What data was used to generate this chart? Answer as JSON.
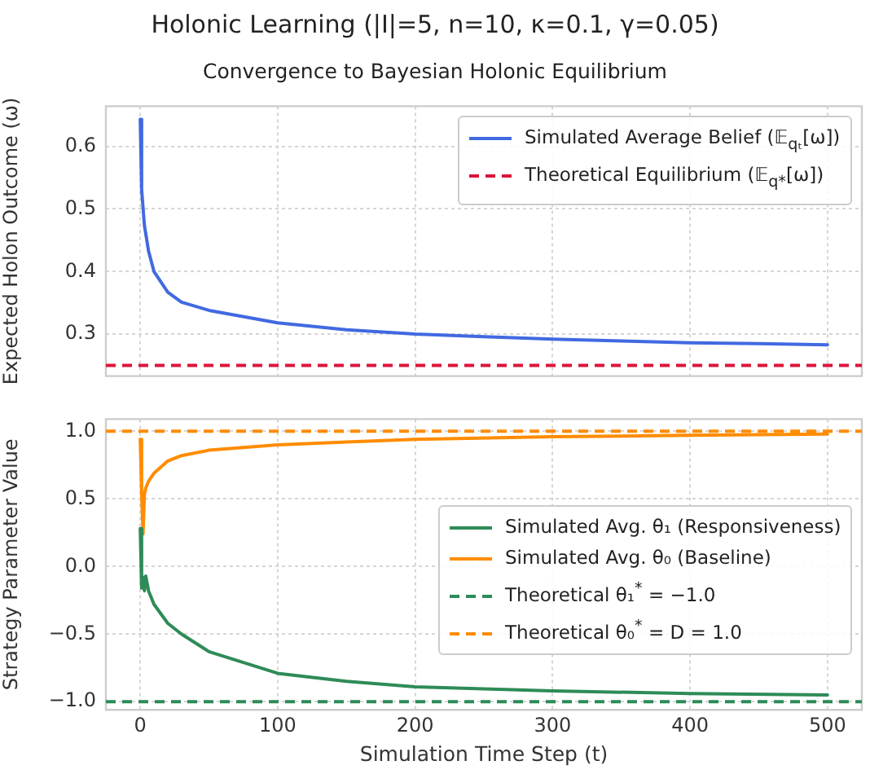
{
  "chart_data": [
    {
      "type": "line",
      "title": "Holonic Learning (|I|=5, n=10, κ=0.1, γ=0.05)",
      "subtitle": "Convergence to Bayesian Holonic Equilibrium",
      "ylabel": "Expected Holon Outcome (ω)",
      "x": [
        0,
        1,
        3,
        6,
        10,
        20,
        30,
        50,
        100,
        150,
        200,
        250,
        300,
        350,
        400,
        450,
        500
      ],
      "series": [
        {
          "name": "Simulated Average Belief (𝔼$_{qₜ}$[ω])",
          "color": "#4169e1",
          "values": [
            0.643,
            0.531,
            0.474,
            0.433,
            0.4,
            0.367,
            0.351,
            0.338,
            0.318,
            0.307,
            0.3,
            0.296,
            0.292,
            0.289,
            0.286,
            0.285,
            0.283
          ]
        }
      ],
      "ref_lines": [
        {
          "axis": "y",
          "value": 0.25,
          "label": "Theoretical Equilibrium (𝔼$_{q*}$[ω])",
          "color": "#dc143c",
          "line_style": "dashed"
        }
      ],
      "xlim": [
        -25,
        525
      ],
      "xticks": [
        0,
        100,
        200,
        300,
        400,
        500
      ],
      "ylim": [
        0.233,
        0.664
      ],
      "yticks": [
        0.3,
        0.4,
        0.5,
        0.6
      ],
      "tick_labels": "y",
      "grid": true,
      "legend": "top right",
      "line_style": "solid",
      "marker": "none"
    },
    {
      "type": "line",
      "xlabel": "Simulation Time Step (t)",
      "ylabel": "Strategy Parameter Value",
      "x": [
        0,
        1,
        2,
        3,
        4,
        6,
        10,
        20,
        30,
        50,
        100,
        150,
        200,
        300,
        400,
        500
      ],
      "series": [
        {
          "name": "Simulated Avg. θ₁ (Responsiveness)",
          "color": "#2e8b57",
          "values": [
            0.28,
            -0.16,
            -0.08,
            -0.18,
            -0.07,
            -0.18,
            -0.28,
            -0.42,
            -0.5,
            -0.63,
            -0.79,
            -0.85,
            -0.89,
            -0.92,
            -0.94,
            -0.95
          ]
        },
        {
          "name": "Simulated Avg. θ₀ (Baseline)",
          "color": "#ff8c00",
          "values": [
            0.94,
            0.55,
            0.24,
            0.53,
            0.58,
            0.63,
            0.69,
            0.78,
            0.82,
            0.86,
            0.9,
            0.92,
            0.94,
            0.96,
            0.97,
            0.98
          ]
        }
      ],
      "ref_lines": [
        {
          "axis": "y",
          "value": -1.0,
          "label": "Theoretical θ₁$^{*}$ = −1.0",
          "color": "#2e8b57",
          "line_style": "dashed"
        },
        {
          "axis": "y",
          "value": 1.0,
          "label": "Theoretical θ₀$^{*}$ = D = 1.0",
          "color": "#ff8c00",
          "line_style": "dashed"
        }
      ],
      "xlim": [
        -25,
        525
      ],
      "xticks": [
        0,
        100,
        200,
        300,
        400,
        500
      ],
      "ylim": [
        -1.06,
        1.09
      ],
      "yticks": [
        {
          "value": -1.0,
          "label": "−1.0"
        },
        {
          "value": -0.5,
          "label": "−0.5"
        },
        {
          "value": 0.0,
          "label": "0.0"
        },
        {
          "value": 0.5,
          "label": "0.5"
        },
        {
          "value": 1.0,
          "label": "1.0"
        }
      ],
      "grid": true,
      "legend": "right",
      "line_style": "solid",
      "marker": "none"
    }
  ]
}
